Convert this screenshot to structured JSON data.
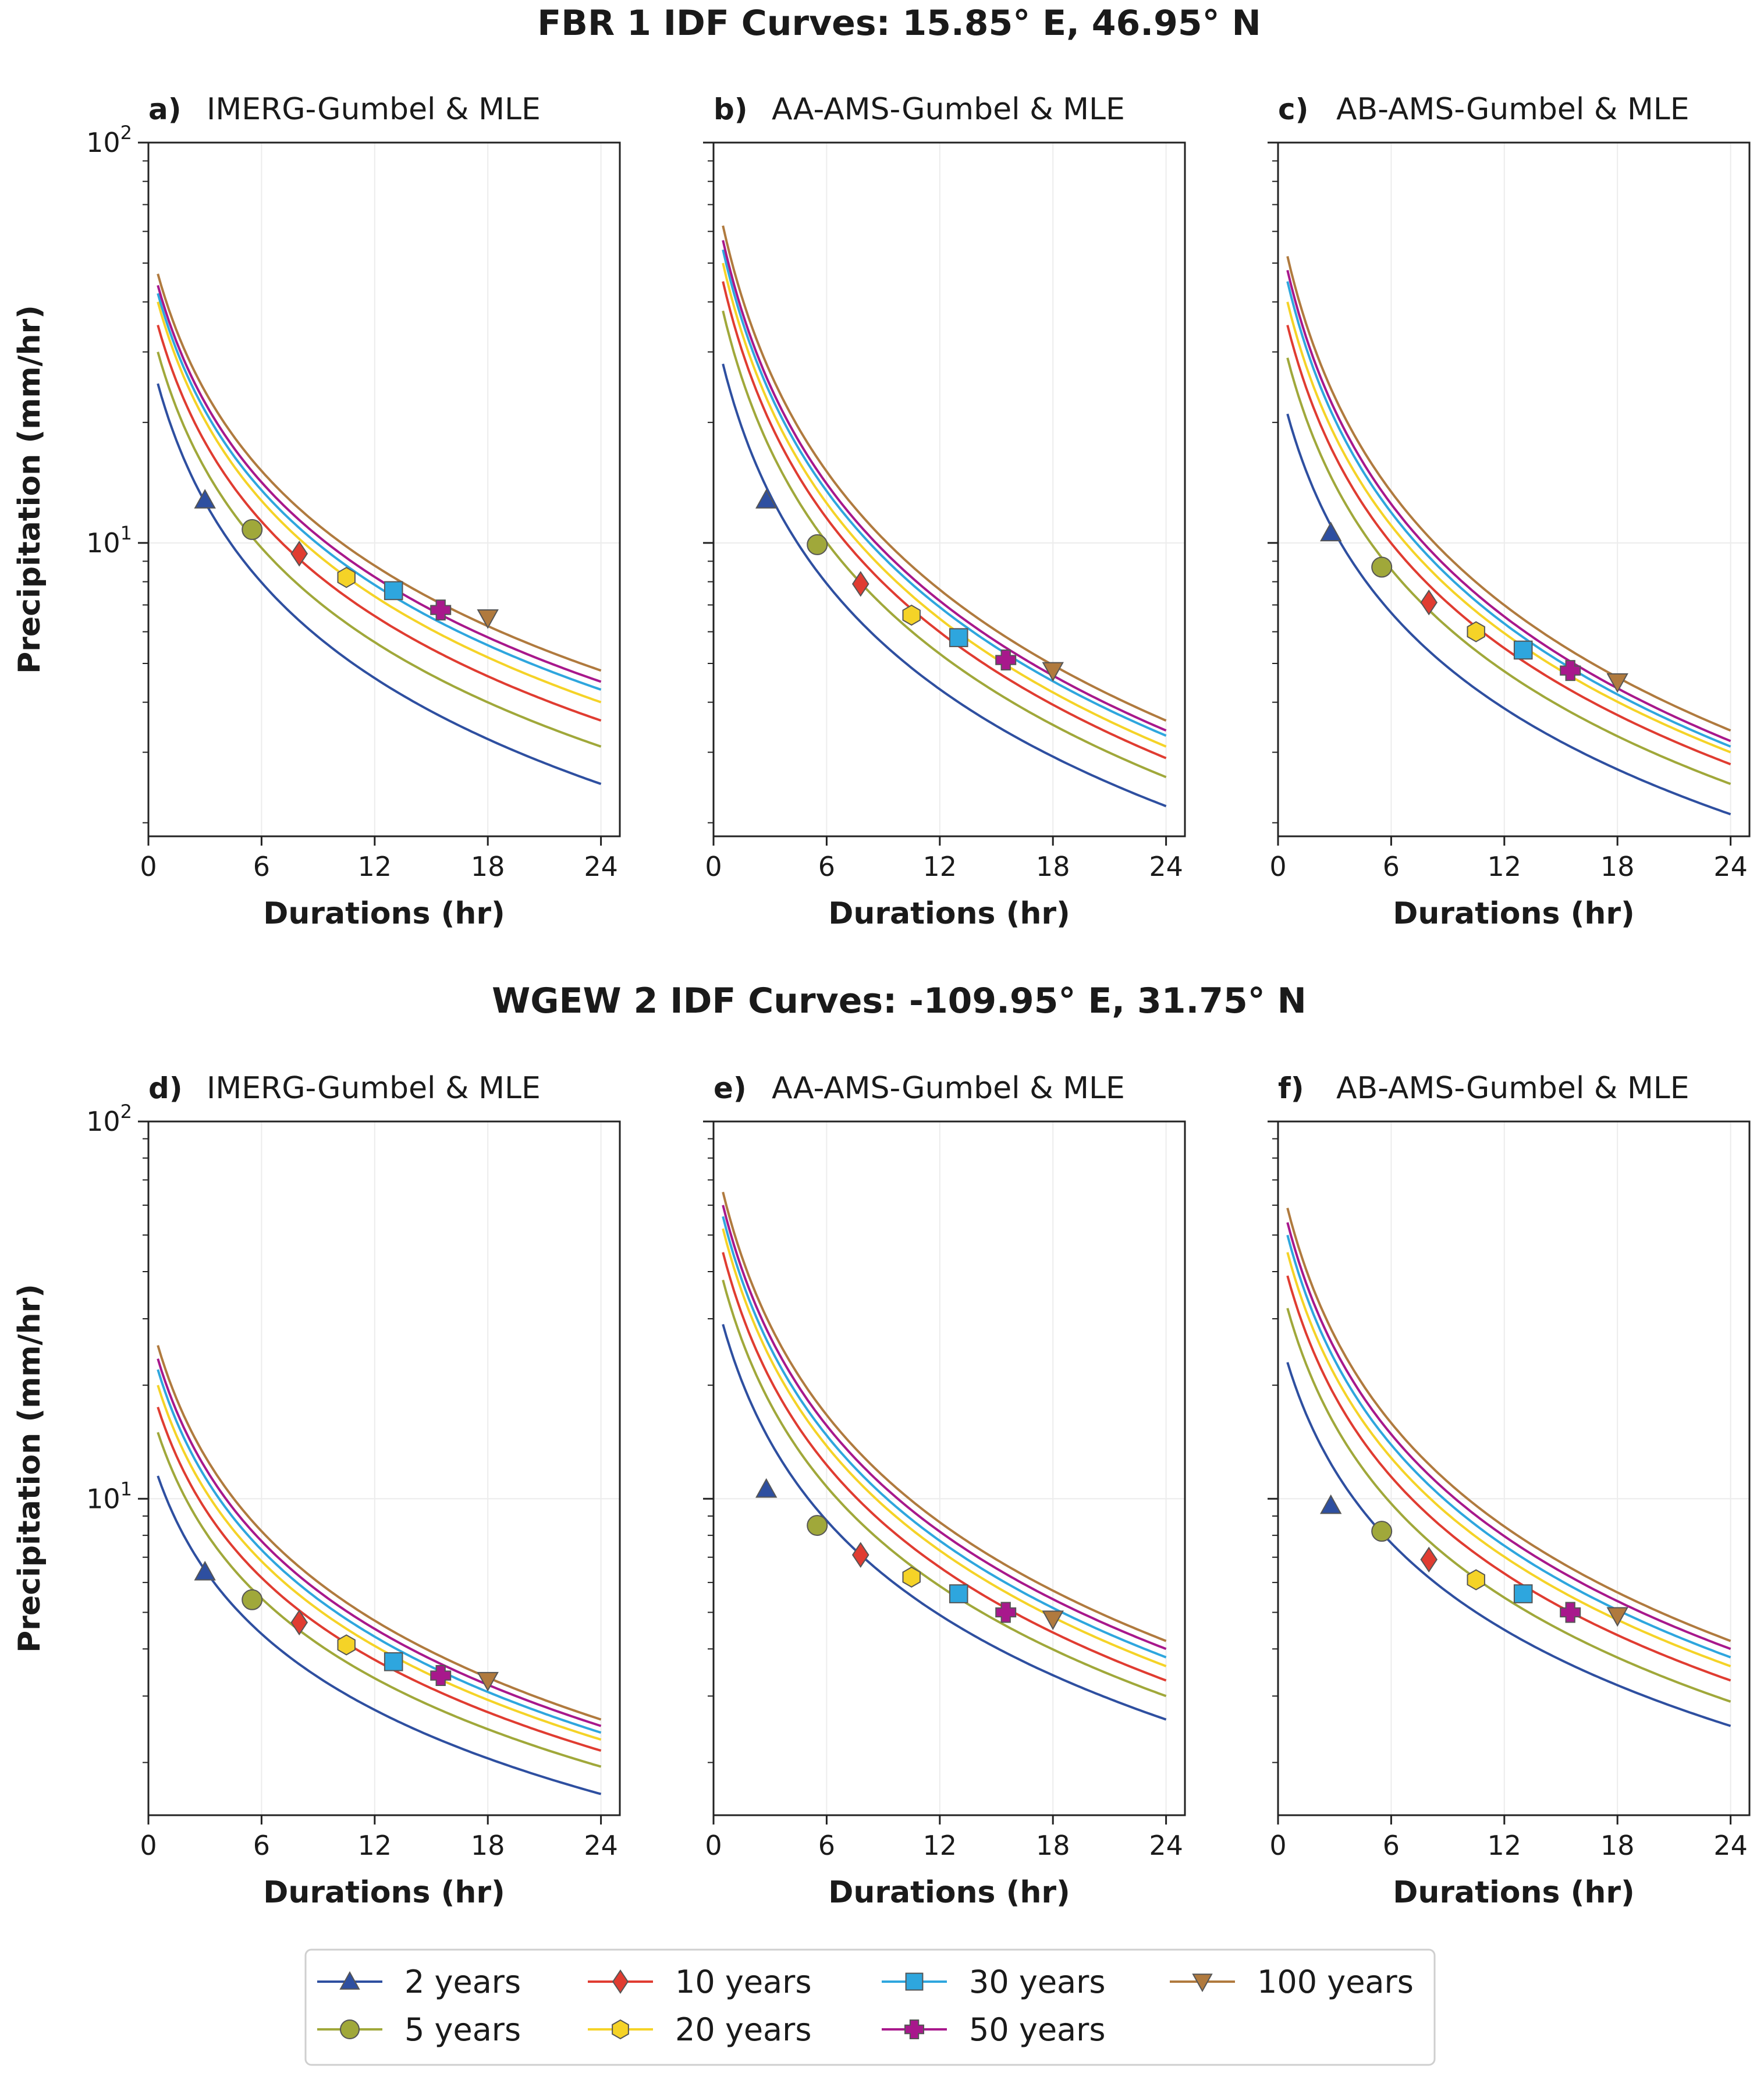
{
  "figure": {
    "titles": [
      "FBR 1 IDF Curves: 15.85° E, 46.95° N",
      "WGEW 2 IDF Curves: -109.95° E, 31.75° N"
    ]
  },
  "chart_data": [
    {
      "type": "line",
      "id": "a",
      "label": "a)",
      "title": "IMERG-Gumbel & MLE",
      "xlabel": "Durations (hr)",
      "ylabel": "Precipitation (mm/hr)",
      "yscale": "log",
      "xlim": [
        0,
        25
      ],
      "ylim": [
        1.85,
        100
      ],
      "xticks": [
        "0",
        "6",
        "12",
        "18",
        "24"
      ],
      "grid": true,
      "series_start": [
        25,
        30,
        35,
        40,
        42,
        44,
        47
      ],
      "series_end": [
        2.5,
        3.1,
        3.6,
        4.0,
        4.3,
        4.5,
        4.8
      ],
      "markers": [
        [
          3,
          12.8
        ],
        [
          5.5,
          10.8
        ],
        [
          8,
          9.4
        ],
        [
          10.5,
          8.2
        ],
        [
          13,
          7.6
        ],
        [
          15.5,
          6.8
        ],
        [
          18,
          6.5
        ]
      ]
    },
    {
      "type": "line",
      "id": "b",
      "label": "b)",
      "title": "AA-AMS-Gumbel & MLE",
      "xlabel": "Durations (hr)",
      "ylabel": "",
      "yscale": "log",
      "xlim": [
        0,
        25
      ],
      "ylim": [
        1.85,
        100
      ],
      "xticks": [
        "0",
        "6",
        "12",
        "18",
        "24"
      ],
      "grid": true,
      "series_start": [
        28,
        38,
        45,
        50,
        54,
        57,
        62
      ],
      "series_end": [
        2.2,
        2.6,
        2.9,
        3.1,
        3.3,
        3.4,
        3.6
      ],
      "markers": [
        [
          2.8,
          12.8
        ],
        [
          5.5,
          9.9
        ],
        [
          7.8,
          7.9
        ],
        [
          10.5,
          6.6
        ],
        [
          13,
          5.8
        ],
        [
          15.5,
          5.1
        ],
        [
          18,
          4.8
        ]
      ]
    },
    {
      "type": "line",
      "id": "c",
      "label": "c)",
      "title": "AB-AMS-Gumbel & MLE",
      "xlabel": "Durations (hr)",
      "ylabel": "",
      "yscale": "log",
      "xlim": [
        0,
        25
      ],
      "ylim": [
        1.85,
        100
      ],
      "xticks": [
        "0",
        "6",
        "12",
        "18",
        "24"
      ],
      "grid": true,
      "series_start": [
        21,
        29,
        35,
        40,
        45,
        48,
        52
      ],
      "series_end": [
        2.1,
        2.5,
        2.8,
        3.0,
        3.1,
        3.2,
        3.4
      ],
      "markers": [
        [
          2.8,
          10.6
        ],
        [
          5.5,
          8.7
        ],
        [
          8,
          7.1
        ],
        [
          10.5,
          6.0
        ],
        [
          13,
          5.4
        ],
        [
          15.5,
          4.8
        ],
        [
          18,
          4.5
        ]
      ]
    },
    {
      "type": "line",
      "id": "d",
      "label": "d)",
      "title": "IMERG-Gumbel & MLE",
      "xlabel": "Durations (hr)",
      "ylabel": "Precipitation (mm/hr)",
      "yscale": "log",
      "xlim": [
        0,
        25
      ],
      "ylim": [
        1.45,
        100
      ],
      "xticks": [
        "0",
        "6",
        "12",
        "18",
        "24"
      ],
      "grid": true,
      "series_start": [
        11.5,
        15,
        17.5,
        20,
        22,
        23.5,
        25.5
      ],
      "series_end": [
        1.65,
        1.95,
        2.15,
        2.3,
        2.4,
        2.5,
        2.6
      ],
      "markers": [
        [
          3,
          6.4
        ],
        [
          5.5,
          5.4
        ],
        [
          8,
          4.7
        ],
        [
          10.5,
          4.1
        ],
        [
          13,
          3.7
        ],
        [
          15.5,
          3.4
        ],
        [
          18,
          3.3
        ]
      ]
    },
    {
      "type": "line",
      "id": "e",
      "label": "e)",
      "title": "AA-AMS-Gumbel & MLE",
      "xlabel": "Durations (hr)",
      "ylabel": "",
      "yscale": "log",
      "xlim": [
        0,
        25
      ],
      "ylim": [
        1.45,
        100
      ],
      "xticks": [
        "0",
        "6",
        "12",
        "18",
        "24"
      ],
      "grid": true,
      "series_start": [
        29,
        38,
        45,
        52,
        56,
        60,
        65
      ],
      "series_end": [
        2.6,
        3.0,
        3.3,
        3.6,
        3.8,
        4.0,
        4.2
      ],
      "markers": [
        [
          2.8,
          10.6
        ],
        [
          5.5,
          8.5
        ],
        [
          7.8,
          7.1
        ],
        [
          10.5,
          6.2
        ],
        [
          13,
          5.6
        ],
        [
          15.5,
          5.0
        ],
        [
          18,
          4.8
        ]
      ]
    },
    {
      "type": "line",
      "id": "f",
      "label": "f)",
      "title": "AB-AMS-Gumbel & MLE",
      "xlabel": "Durations (hr)",
      "ylabel": "",
      "yscale": "log",
      "xlim": [
        0,
        25
      ],
      "ylim": [
        1.45,
        100
      ],
      "xticks": [
        "0",
        "6",
        "12",
        "18",
        "24"
      ],
      "grid": true,
      "series_start": [
        23,
        32,
        39,
        45,
        50,
        54,
        59
      ],
      "series_end": [
        2.5,
        2.9,
        3.3,
        3.6,
        3.8,
        4.0,
        4.2
      ],
      "markers": [
        [
          2.8,
          9.6
        ],
        [
          5.5,
          8.2
        ],
        [
          8,
          6.9
        ],
        [
          10.5,
          6.1
        ],
        [
          13,
          5.6
        ],
        [
          15.5,
          5.0
        ],
        [
          18,
          4.9
        ]
      ]
    }
  ],
  "legend": {
    "placement": "bottom-center",
    "entries": [
      {
        "label": "2 years",
        "color": "#2e4fa0",
        "marker": "triangle-up"
      },
      {
        "label": "5 years",
        "color": "#a0a83a",
        "marker": "circle"
      },
      {
        "label": "10 years",
        "color": "#e03c31",
        "marker": "diamond"
      },
      {
        "label": "20 years",
        "color": "#f5d327",
        "marker": "hexagon"
      },
      {
        "label": "30 years",
        "color": "#2ea6de",
        "marker": "square"
      },
      {
        "label": "50 years",
        "color": "#a8188c",
        "marker": "plus"
      },
      {
        "label": "100 years",
        "color": "#b07a3e",
        "marker": "triangle-down"
      }
    ]
  }
}
